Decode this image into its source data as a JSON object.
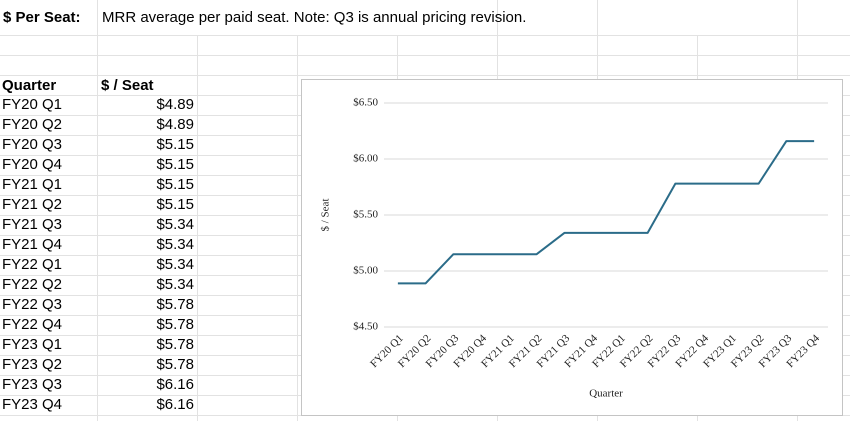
{
  "header": {
    "label": "$ Per Seat:",
    "note": "MRR average per paid seat. Note: Q3 is annual pricing revision."
  },
  "table": {
    "columns": [
      "Quarter",
      "$ / Seat"
    ],
    "rows": [
      [
        "FY20 Q1",
        "$4.89"
      ],
      [
        "FY20 Q2",
        "$4.89"
      ],
      [
        "FY20 Q3",
        "$5.15"
      ],
      [
        "FY20 Q4",
        "$5.15"
      ],
      [
        "FY21 Q1",
        "$5.15"
      ],
      [
        "FY21 Q2",
        "$5.15"
      ],
      [
        "FY21 Q3",
        "$5.34"
      ],
      [
        "FY21 Q4",
        "$5.34"
      ],
      [
        "FY22 Q1",
        "$5.34"
      ],
      [
        "FY22 Q2",
        "$5.34"
      ],
      [
        "FY22 Q3",
        "$5.78"
      ],
      [
        "FY22 Q4",
        "$5.78"
      ],
      [
        "FY23 Q1",
        "$5.78"
      ],
      [
        "FY23 Q2",
        "$5.78"
      ],
      [
        "FY23 Q3",
        "$6.16"
      ],
      [
        "FY23 Q4",
        "$6.16"
      ]
    ]
  },
  "chart_data": {
    "type": "line",
    "x_label": "Quarter",
    "y_label": "$ / Seat",
    "categories": [
      "FY20 Q1",
      "FY20 Q2",
      "FY20 Q3",
      "FY20 Q4",
      "FY21 Q1",
      "FY21 Q2",
      "FY21 Q3",
      "FY21 Q4",
      "FY22 Q1",
      "FY22 Q2",
      "FY22 Q3",
      "FY22 Q4",
      "FY23 Q1",
      "FY23 Q2",
      "FY23 Q3",
      "FY23 Q4"
    ],
    "values": [
      4.89,
      4.89,
      5.15,
      5.15,
      5.15,
      5.15,
      5.34,
      5.34,
      5.34,
      5.34,
      5.78,
      5.78,
      5.78,
      5.78,
      6.16,
      6.16
    ],
    "color": "#2b6c89",
    "ylim": [
      4.5,
      6.5
    ],
    "yticks": [
      {
        "value": 4.5,
        "label": "$4.50"
      },
      {
        "value": 5,
        "label": "$5.00"
      },
      {
        "value": 5.5,
        "label": "$5.50"
      },
      {
        "value": 6,
        "label": "$6.00"
      },
      {
        "value": 6.5,
        "label": "$6.50"
      }
    ],
    "grid": true
  }
}
